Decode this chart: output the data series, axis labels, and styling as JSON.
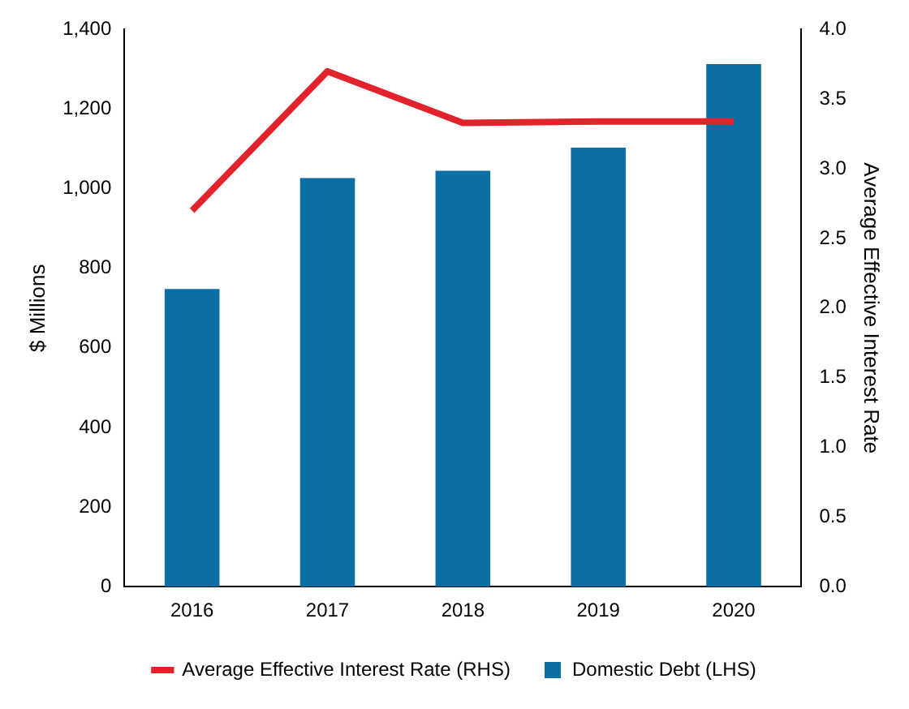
{
  "chart_data": {
    "type": "bar",
    "categories": [
      "2016",
      "2017",
      "2018",
      "2019",
      "2020"
    ],
    "series": [
      {
        "name": "Domestic Debt (LHS)",
        "color": "#0b6fa4",
        "values": [
          748,
          1027,
          1045,
          1103,
          1313
        ]
      },
      {
        "name": "Average Effective Interest Rate (RHS)",
        "type": "line",
        "axis": "y2",
        "color": "#e3232c",
        "values": [
          2.7,
          3.7,
          3.33,
          3.34,
          3.34
        ]
      }
    ],
    "ylabel": "$ Millions",
    "y2label": "Average Effective Interest Rate",
    "ylim": [
      0,
      1400
    ],
    "yticks": [
      0,
      200,
      400,
      600,
      800,
      {
        "value": 1000,
        "label": "1,000"
      },
      {
        "value": 1200,
        "label": "1,200"
      },
      {
        "value": 1400,
        "label": "1,400"
      }
    ],
    "y2lim": [
      0,
      4
    ],
    "y2ticks": [
      {
        "value": 0,
        "label": "0.0"
      },
      0.5,
      {
        "value": 1,
        "label": "1.0"
      },
      1.5,
      {
        "value": 2,
        "label": "2.0"
      },
      2.5,
      {
        "value": 3,
        "label": "3.0"
      },
      3.5,
      {
        "value": 4,
        "label": "4.0"
      }
    ],
    "grid": false,
    "legend": "bottom",
    "marker": "none",
    "line_style": "solid"
  }
}
